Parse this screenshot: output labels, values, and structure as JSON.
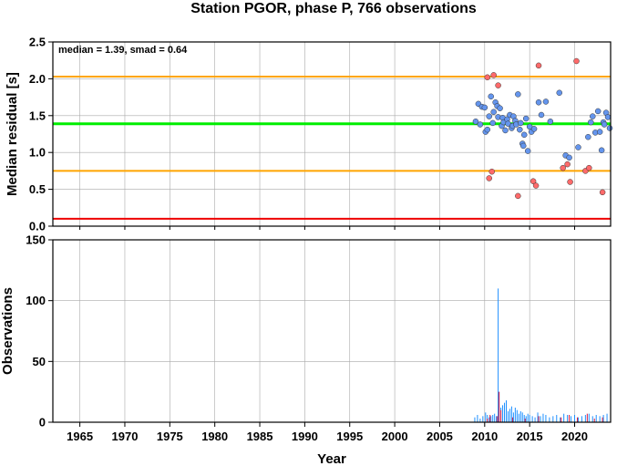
{
  "chart_data": [
    {
      "type": "scatter",
      "title": "Station PGOR, phase P, 766 observations",
      "ylabel": "Median residual [s]",
      "annotation": "median = 1.39, smad = 0.64",
      "xlim": [
        1962,
        2024
      ],
      "ylim": [
        0,
        2.5
      ],
      "yticks": [
        "0.0",
        "0.5",
        "1.0",
        "1.5",
        "2.0",
        "2.5"
      ],
      "reference_lines": [
        {
          "name": "median",
          "y": 1.39,
          "color": "#00ee00"
        },
        {
          "name": "upper",
          "y": 2.03,
          "color": "#ffa500"
        },
        {
          "name": "lower",
          "y": 0.75,
          "color": "#ffa500"
        },
        {
          "name": "floor",
          "y": 0.1,
          "color": "#ee0000"
        }
      ],
      "colors": {
        "inlier": "#6495ed",
        "outlier": "#ff6a6a"
      },
      "series": [
        {
          "role": "inlier",
          "x": [
            2009.0,
            2009.3,
            2009.5,
            2009.7,
            2010.0,
            2010.1,
            2010.3,
            2010.5,
            2010.7,
            2010.9,
            2011.0,
            2011.2,
            2011.4,
            2011.5,
            2011.7,
            2011.9,
            2012.0,
            2012.1,
            2012.3,
            2012.5,
            2012.6,
            2012.8,
            2013.0,
            2013.1,
            2013.2,
            2013.4,
            2013.5,
            2013.7,
            2013.9,
            2014.0,
            2014.2,
            2014.3,
            2014.4,
            2014.6,
            2014.8,
            2015.0,
            2015.2,
            2015.5,
            2016.0,
            2016.3,
            2016.8,
            2017.3,
            2018.3,
            2019.0,
            2019.4,
            2020.4,
            2021.5,
            2021.8,
            2022.0,
            2022.3,
            2022.6,
            2022.8,
            2023.0,
            2023.2,
            2023.3,
            2023.5,
            2023.7,
            2023.9
          ],
          "y": [
            1.42,
            1.66,
            1.38,
            1.62,
            1.61,
            1.28,
            1.31,
            1.49,
            1.76,
            1.4,
            1.55,
            1.68,
            1.63,
            1.48,
            1.6,
            1.36,
            1.47,
            1.41,
            1.3,
            1.45,
            1.39,
            1.51,
            1.33,
            1.36,
            1.49,
            1.43,
            1.38,
            1.79,
            1.31,
            1.4,
            1.12,
            1.09,
            1.24,
            1.46,
            1.02,
            1.35,
            1.28,
            1.32,
            1.68,
            1.51,
            1.69,
            1.42,
            1.81,
            0.96,
            0.93,
            1.07,
            1.21,
            1.41,
            1.49,
            1.27,
            1.56,
            1.28,
            1.03,
            1.41,
            1.38,
            1.54,
            1.48,
            1.33
          ]
        },
        {
          "role": "outlier",
          "x": [
            2010.3,
            2010.5,
            2010.8,
            2011.0,
            2011.5,
            2013.7,
            2015.4,
            2015.7,
            2016.0,
            2018.7,
            2019.2,
            2019.5,
            2020.2,
            2021.2,
            2021.6,
            2023.1
          ],
          "y": [
            2.02,
            0.65,
            0.74,
            2.05,
            1.91,
            0.41,
            0.61,
            0.55,
            2.18,
            0.79,
            0.84,
            0.6,
            2.24,
            0.75,
            0.79,
            0.46
          ]
        }
      ]
    },
    {
      "type": "bar",
      "ylabel": "Observations",
      "xlabel": "Year",
      "xlim": [
        1962,
        2024
      ],
      "ylim": [
        0,
        150
      ],
      "yticks": [
        "0",
        "50",
        "100",
        "150"
      ],
      "xticks": [
        "1965",
        "1970",
        "1975",
        "1980",
        "1985",
        "1990",
        "1995",
        "2000",
        "2005",
        "2010",
        "2015",
        "2020"
      ],
      "colors": {
        "primary": "#1e90ff",
        "secondary": "#dc143c"
      },
      "series": [
        {
          "role": "primary",
          "x": [
            2008.9,
            2009.2,
            2009.5,
            2009.8,
            2010.1,
            2010.3,
            2010.5,
            2010.7,
            2010.9,
            2011.1,
            2011.3,
            2011.5,
            2011.6,
            2011.8,
            2012.0,
            2012.2,
            2012.4,
            2012.6,
            2012.8,
            2013.0,
            2013.2,
            2013.4,
            2013.6,
            2013.8,
            2014.0,
            2014.2,
            2014.4,
            2014.6,
            2014.8,
            2015.0,
            2015.3,
            2015.6,
            2015.9,
            2016.2,
            2016.5,
            2016.8,
            2017.2,
            2017.6,
            2018.0,
            2018.4,
            2018.8,
            2019.2,
            2019.6,
            2020.0,
            2020.4,
            2020.8,
            2021.2,
            2021.6,
            2022.0,
            2022.4,
            2022.8,
            2023.2,
            2023.6
          ],
          "y": [
            4,
            6,
            3,
            5,
            8,
            6,
            4,
            5,
            6,
            7,
            5,
            110,
            25,
            12,
            14,
            16,
            18,
            9,
            11,
            13,
            8,
            12,
            10,
            7,
            9,
            8,
            6,
            5,
            7,
            6,
            5,
            4,
            8,
            5,
            7,
            6,
            4,
            5,
            6,
            4,
            7,
            6,
            5,
            6,
            4,
            5,
            6,
            7,
            5,
            6,
            5,
            6,
            7
          ]
        },
        {
          "role": "secondary",
          "x": [
            2010.3,
            2010.6,
            2011.4,
            2011.6,
            2011.8,
            2013.1,
            2014.5,
            2016.0,
            2018.5,
            2019.4,
            2020.3,
            2021.4,
            2022.2,
            2023.1
          ],
          "y": [
            3,
            6,
            5,
            25,
            10,
            4,
            3,
            5,
            4,
            6,
            4,
            7,
            3,
            4
          ]
        }
      ]
    }
  ]
}
